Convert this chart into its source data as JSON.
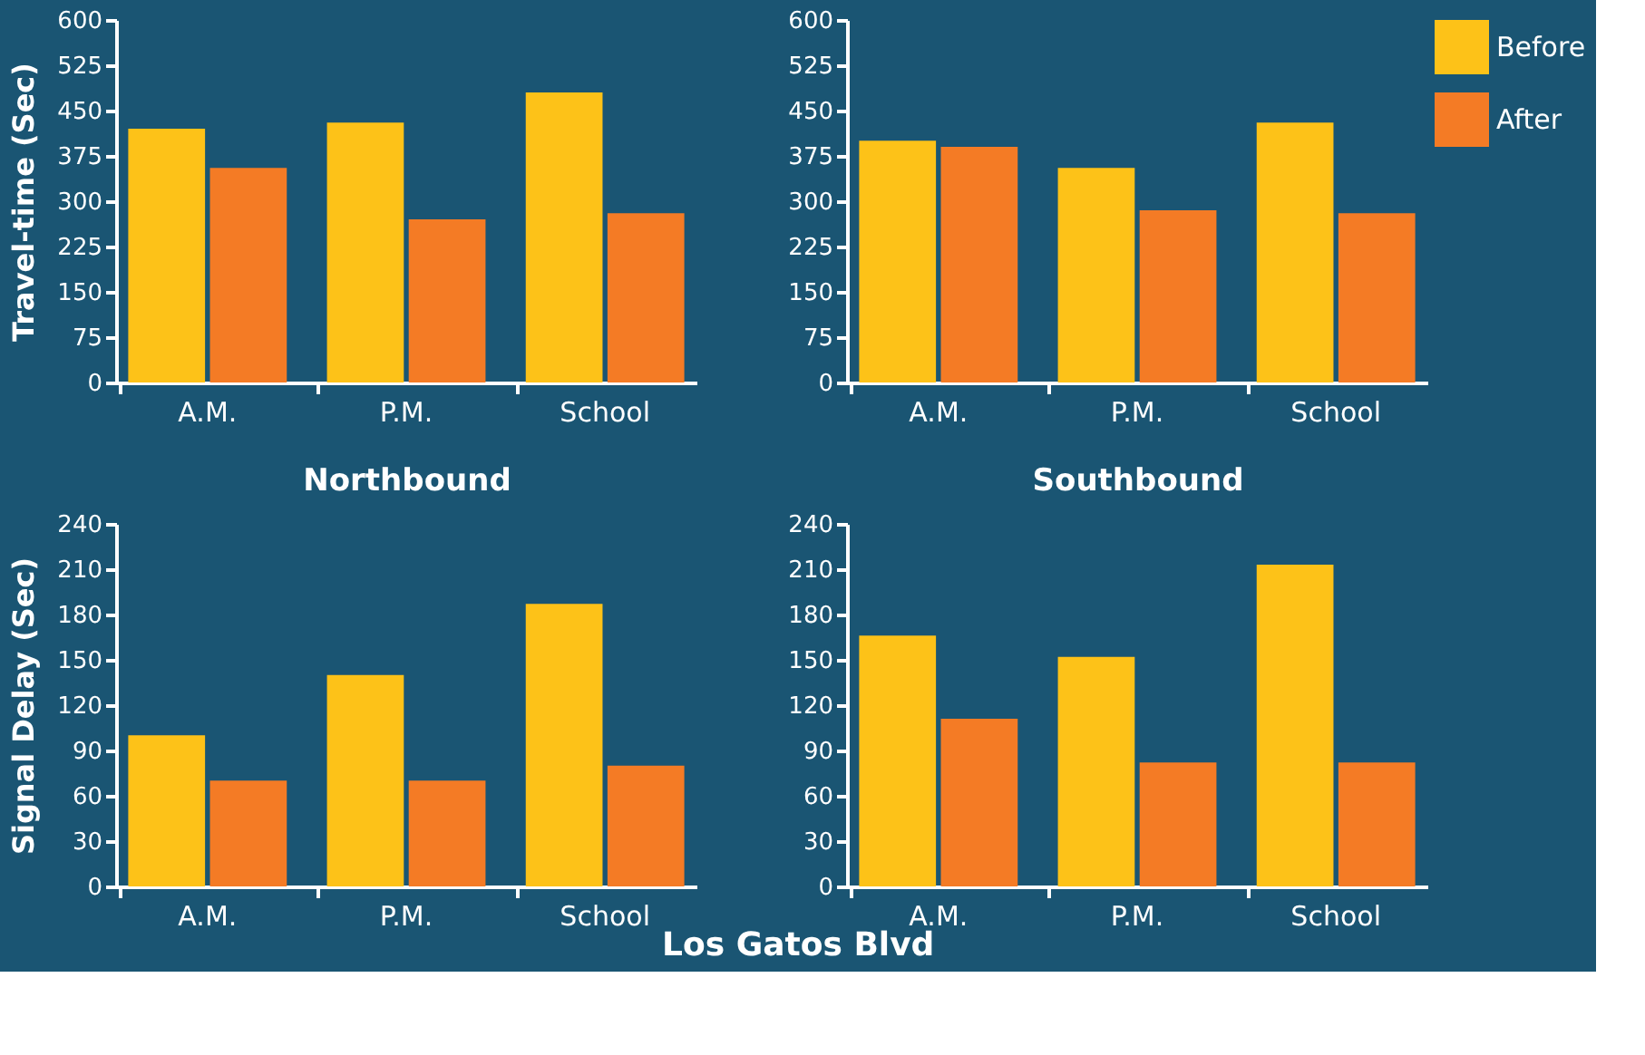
{
  "chart_data": [
    {
      "type": "bar",
      "ylabel": "Travel-time (Sec)",
      "xlabel": "Northbound",
      "categories": [
        "A.M.",
        "P.M.",
        "School"
      ],
      "ylim": [
        0,
        600
      ],
      "yticks": [
        0,
        75,
        150,
        225,
        300,
        375,
        450,
        525,
        600
      ],
      "grid": false,
      "legend": false,
      "series": [
        {
          "color": "#fdc218",
          "values": [
            420,
            430,
            480
          ]
        },
        {
          "color": "#f47b25",
          "values": [
            355,
            270,
            280
          ]
        }
      ]
    },
    {
      "type": "bar",
      "xlabel": "Southbound",
      "categories": [
        "A.M.",
        "P.M.",
        "School"
      ],
      "ylim": [
        0,
        600
      ],
      "yticks": [
        0,
        75,
        150,
        225,
        300,
        375,
        450,
        525,
        600
      ],
      "grid": false,
      "legend": "right",
      "series": [
        {
          "name": "Before",
          "color": "#fdc218",
          "values": [
            400,
            355,
            430
          ]
        },
        {
          "name": "After",
          "color": "#f47b25",
          "values": [
            390,
            285,
            280
          ]
        }
      ]
    },
    {
      "type": "bar",
      "ylabel": "Signal Delay (Sec)",
      "annotations": [
        "Los Gatos Blvd"
      ],
      "categories": [
        "A.M.",
        "P.M.",
        "School"
      ],
      "ylim": [
        0,
        240
      ],
      "yticks": [
        0,
        30,
        60,
        90,
        120,
        150,
        180,
        210,
        240
      ],
      "grid": false,
      "legend": false,
      "series": [
        {
          "color": "#fdc218",
          "values": [
            100,
            140,
            187
          ]
        },
        {
          "color": "#f47b25",
          "values": [
            70,
            70,
            80
          ]
        }
      ]
    },
    {
      "type": "bar",
      "categories": [
        "A.M.",
        "P.M.",
        "School"
      ],
      "ylim": [
        0,
        240
      ],
      "yticks": [
        0,
        30,
        60,
        90,
        120,
        150,
        180,
        210,
        240
      ],
      "grid": false,
      "legend": false,
      "series": [
        {
          "color": "#fdc218",
          "values": [
            166,
            152,
            213
          ]
        },
        {
          "color": "#f47b25",
          "values": [
            111,
            82,
            82
          ]
        }
      ]
    }
  ]
}
